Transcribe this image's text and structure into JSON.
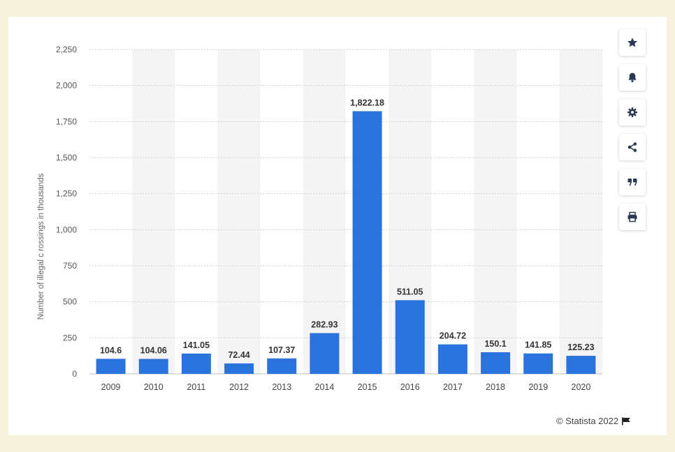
{
  "chart_data": {
    "type": "bar",
    "categories": [
      "2009",
      "2010",
      "2011",
      "2012",
      "2013",
      "2014",
      "2015",
      "2016",
      "2017",
      "2018",
      "2019",
      "2020"
    ],
    "values": [
      104.6,
      104.06,
      141.05,
      72.44,
      107.37,
      282.93,
      1822.18,
      511.05,
      204.72,
      150.1,
      141.85,
      125.23
    ],
    "value_labels": [
      "104.6",
      "104.06",
      "141.05",
      "72.44",
      "107.37",
      "282.93",
      "1,822.18",
      "511.05",
      "204.72",
      "150.1",
      "141.85",
      "125.23"
    ],
    "ylabel": "Number of illegal c rossings in thousands",
    "ylim": [
      0,
      2250
    ],
    "yticks": [
      0,
      250,
      500,
      750,
      1000,
      1250,
      1500,
      1750,
      2000,
      2250
    ],
    "ytick_labels": [
      "0",
      "250",
      "500",
      "750",
      "1,000",
      "1,250",
      "1,500",
      "1,750",
      "2,000",
      "2,250"
    ],
    "grid": true,
    "bar_color": "#2b73dc",
    "band_color": "#f4f4f4",
    "grid_color": "#cfcfcf"
  },
  "sidebar": {
    "buttons": [
      {
        "name": "favorite-button",
        "icon": "star-icon"
      },
      {
        "name": "notification-button",
        "icon": "bell-icon"
      },
      {
        "name": "settings-button",
        "icon": "gear-icon"
      },
      {
        "name": "share-button",
        "icon": "share-icon"
      },
      {
        "name": "cite-button",
        "icon": "quote-icon"
      },
      {
        "name": "print-button",
        "icon": "print-icon"
      }
    ]
  },
  "credit": {
    "text": "© Statista 2022"
  }
}
